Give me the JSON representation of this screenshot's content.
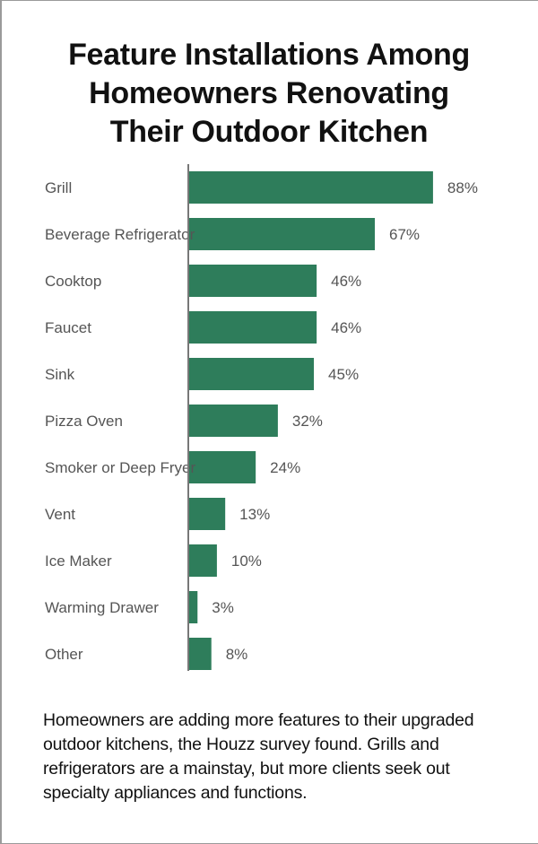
{
  "chart_data": {
    "type": "bar",
    "orientation": "horizontal",
    "title_lines": [
      "Feature Installations Among",
      "Homeowners Renovating",
      "Their Outdoor Kitchen"
    ],
    "categories": [
      "Grill",
      "Beverage Refrigerator",
      "Cooktop",
      "Faucet",
      "Sink",
      "Pizza Oven",
      "Smoker or Deep Fryer",
      "Vent",
      "Ice Maker",
      "Warming Drawer",
      "Other"
    ],
    "values": [
      88,
      67,
      46,
      46,
      45,
      32,
      24,
      13,
      10,
      3,
      8
    ],
    "value_labels": [
      "88%",
      "67%",
      "46%",
      "46%",
      "45%",
      "32%",
      "24%",
      "13%",
      "10%",
      "3%",
      "8%"
    ],
    "unit": "%",
    "xlim": [
      0,
      100
    ],
    "grid": false,
    "bar_color": "#2e7d5b"
  },
  "caption": "Homeowners are adding more features to their upgraded outdoor kitchens, the Houzz survey found. Grills and refrigerators are a mainstay, but more clients seek out specialty appliances and functions."
}
